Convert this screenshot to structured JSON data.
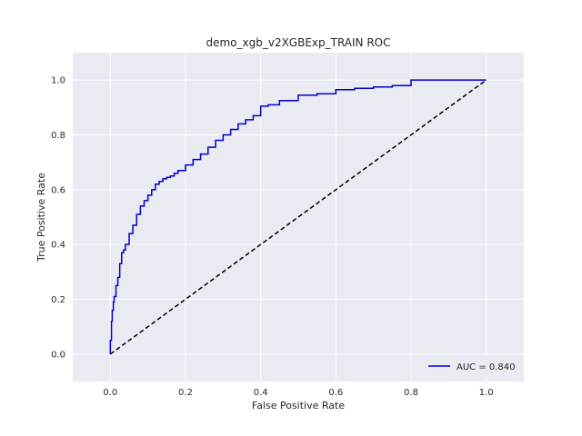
{
  "chart_data": {
    "type": "line",
    "title": "demo_xgb_v2XGBExp_TRAIN ROC",
    "xlabel": "False Positive Rate",
    "ylabel": "True Positive Rate",
    "xlim": [
      -0.1,
      1.1
    ],
    "ylim": [
      -0.1,
      1.1
    ],
    "x_ticks": [
      0.0,
      0.2,
      0.4,
      0.6,
      0.8,
      1.0
    ],
    "y_ticks": [
      0.0,
      0.2,
      0.4,
      0.6,
      0.8,
      1.0
    ],
    "x_tick_labels": [
      "0.0",
      "0.2",
      "0.4",
      "0.6",
      "0.8",
      "1.0"
    ],
    "y_tick_labels": [
      "0.0",
      "0.2",
      "0.4",
      "0.6",
      "0.8",
      "1.0"
    ],
    "grid": true,
    "legend_position": "lower-right",
    "colors": {
      "background": "#eaeaf2",
      "grid": "#ffffff",
      "roc": "#0000cc",
      "diagonal": "#000000"
    },
    "series": [
      {
        "name": "AUC = 0.840",
        "style": "solid",
        "x": [
          0.0,
          0.0,
          0.003,
          0.005,
          0.008,
          0.01,
          0.015,
          0.02,
          0.025,
          0.03,
          0.035,
          0.04,
          0.05,
          0.06,
          0.07,
          0.08,
          0.09,
          0.1,
          0.11,
          0.12,
          0.13,
          0.14,
          0.15,
          0.16,
          0.17,
          0.18,
          0.2,
          0.22,
          0.24,
          0.26,
          0.28,
          0.3,
          0.32,
          0.34,
          0.36,
          0.38,
          0.4,
          0.42,
          0.45,
          0.5,
          0.55,
          0.6,
          0.65,
          0.7,
          0.75,
          0.8,
          0.85,
          0.9,
          0.95,
          1.0
        ],
        "y": [
          0.0,
          0.05,
          0.12,
          0.16,
          0.19,
          0.21,
          0.25,
          0.28,
          0.33,
          0.37,
          0.38,
          0.4,
          0.44,
          0.47,
          0.51,
          0.54,
          0.56,
          0.58,
          0.6,
          0.62,
          0.63,
          0.64,
          0.645,
          0.65,
          0.66,
          0.67,
          0.69,
          0.71,
          0.73,
          0.755,
          0.78,
          0.8,
          0.82,
          0.84,
          0.855,
          0.87,
          0.905,
          0.91,
          0.925,
          0.945,
          0.95,
          0.965,
          0.97,
          0.975,
          0.98,
          1.0,
          1.0,
          1.0,
          1.0,
          1.0
        ]
      },
      {
        "name": "diagonal",
        "style": "dashed",
        "x": [
          0.0,
          1.0
        ],
        "y": [
          0.0,
          1.0
        ]
      }
    ]
  }
}
